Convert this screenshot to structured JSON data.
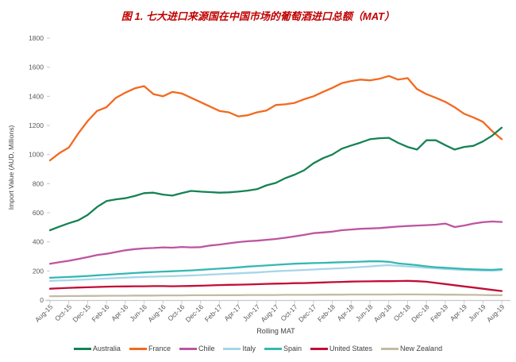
{
  "title": {
    "text": "图 1. 七大进口来源国在中国市场的葡萄酒进口总额（MAT）",
    "color": "#c00000"
  },
  "chart_data": {
    "type": "line",
    "title": "图 1. 七大进口来源国在中国市场的葡萄酒进口总额（MAT）",
    "xlabel": "Rolling MAT",
    "ylabel": "Import Value (AUD, Millions)",
    "ylim": [
      0,
      1800
    ],
    "y_tick_step": 200,
    "x_tick_step": 2,
    "grid": false,
    "legend_position": "bottom",
    "axis_color": "#c9c9c9",
    "tick_text_color": "#595959",
    "x_labels": [
      "Aug-15",
      "Sep-15",
      "Oct-15",
      "Nov-15",
      "Dec-15",
      "Jan-16",
      "Feb-16",
      "Mar-16",
      "Apr-16",
      "May-16",
      "Jun-16",
      "Jul-16",
      "Aug-16",
      "Sep-16",
      "Oct-16",
      "Nov-16",
      "Dec-16",
      "Jan-17",
      "Feb-17",
      "Mar-17",
      "Apr-17",
      "May-17",
      "Jun-17",
      "Jul-17",
      "Aug-17",
      "Sep-17",
      "Oct-17",
      "Nov-17",
      "Dec-17",
      "Jan-18",
      "Feb-18",
      "Mar-18",
      "Apr-18",
      "May-18",
      "Jun-18",
      "Jul-18",
      "Aug-18",
      "Sep-18",
      "Oct-18",
      "Nov-18",
      "Dec-18",
      "Jan-19",
      "Feb-19",
      "Mar-19",
      "Apr-19",
      "May-19",
      "Jun-19",
      "Jul-19",
      "Aug-19"
    ],
    "draw_order": [
      3,
      6,
      5,
      4,
      2,
      1,
      0
    ],
    "series": [
      {
        "name": "Australia",
        "color": "#168254",
        "values": [
          480,
          505,
          528,
          548,
          585,
          640,
          680,
          692,
          700,
          715,
          735,
          738,
          725,
          718,
          735,
          750,
          745,
          742,
          738,
          740,
          745,
          752,
          762,
          788,
          805,
          838,
          862,
          892,
          940,
          975,
          1000,
          1040,
          1062,
          1082,
          1105,
          1112,
          1115,
          1080,
          1052,
          1034,
          1098,
          1098,
          1065,
          1034,
          1052,
          1060,
          1090,
          1130,
          1185
        ]
      },
      {
        "name": "France",
        "color": "#f3691e",
        "values": [
          960,
          1010,
          1048,
          1145,
          1230,
          1300,
          1325,
          1390,
          1425,
          1455,
          1470,
          1415,
          1400,
          1430,
          1420,
          1390,
          1360,
          1330,
          1300,
          1290,
          1262,
          1270,
          1290,
          1302,
          1340,
          1345,
          1355,
          1380,
          1400,
          1430,
          1458,
          1490,
          1505,
          1515,
          1510,
          1520,
          1540,
          1515,
          1525,
          1450,
          1415,
          1390,
          1362,
          1325,
          1280,
          1255,
          1225,
          1160,
          1105
        ]
      },
      {
        "name": "Chile",
        "color": "#bd559f",
        "values": [
          250,
          260,
          270,
          282,
          295,
          310,
          318,
          330,
          342,
          350,
          355,
          358,
          362,
          360,
          365,
          362,
          364,
          375,
          381,
          390,
          398,
          404,
          408,
          414,
          420,
          428,
          438,
          448,
          460,
          465,
          470,
          480,
          485,
          490,
          492,
          495,
          500,
          505,
          509,
          512,
          515,
          518,
          526,
          502,
          512,
          526,
          535,
          540,
          537
        ]
      },
      {
        "name": "Italy",
        "color": "#a6d6e8",
        "values": [
          132,
          134,
          136,
          139,
          142,
          145,
          148,
          151,
          154,
          157,
          159,
          161,
          163,
          165,
          167,
          169,
          172,
          175,
          178,
          181,
          184,
          187,
          190,
          194,
          198,
          201,
          204,
          207,
          210,
          213,
          216,
          219,
          223,
          227,
          231,
          236,
          240,
          235,
          231,
          227,
          222,
          218,
          214,
          210,
          207,
          205,
          203,
          202,
          206
        ]
      },
      {
        "name": "Spain",
        "color": "#35b8b2",
        "values": [
          153,
          156,
          159,
          162,
          166,
          170,
          174,
          178,
          182,
          186,
          190,
          193,
          196,
          198,
          201,
          204,
          208,
          212,
          216,
          220,
          225,
          230,
          234,
          238,
          242,
          246,
          250,
          252,
          254,
          256,
          258,
          260,
          262,
          264,
          266,
          267,
          263,
          252,
          246,
          240,
          232,
          226,
          222,
          218,
          214,
          211,
          209,
          208,
          212
        ]
      },
      {
        "name": "United States",
        "color": "#c20d36",
        "values": [
          78,
          81,
          84,
          86,
          88,
          90,
          92,
          93,
          94,
          95,
          95,
          96,
          96,
          95,
          96,
          97,
          99,
          101,
          103,
          105,
          106,
          107,
          109,
          111,
          113,
          114,
          116,
          117,
          119,
          121,
          123,
          125,
          127,
          128,
          129,
          130,
          130,
          131,
          132,
          130,
          126,
          118,
          110,
          102,
          94,
          86,
          78,
          70,
          62
        ]
      },
      {
        "name": "New Zealand",
        "color": "#c3bba3",
        "values": [
          27,
          27,
          28,
          28,
          29,
          29,
          30,
          30,
          30,
          31,
          31,
          31,
          32,
          32,
          32,
          33,
          33,
          33,
          34,
          34,
          34,
          35,
          35,
          35,
          35,
          36,
          36,
          36,
          36,
          37,
          37,
          37,
          38,
          38,
          38,
          38,
          38,
          39,
          39,
          39,
          38,
          38,
          37,
          37,
          36,
          36,
          35,
          34,
          34
        ]
      }
    ]
  }
}
